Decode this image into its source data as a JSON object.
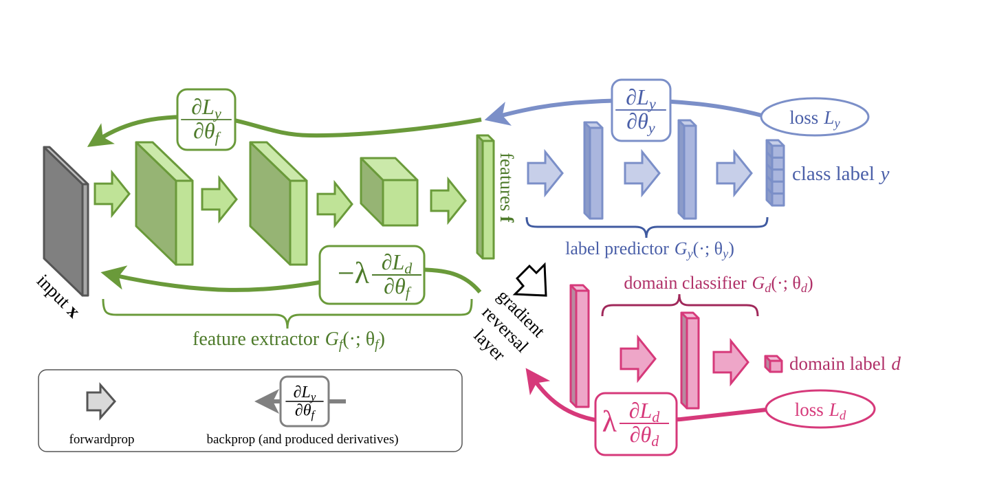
{
  "colors": {
    "green_stroke": "#6a9a3a",
    "green_fill": "#bfe397",
    "green_dark": "#96b474",
    "green_text": "#4d7a2a",
    "blue_stroke": "#7b8fc8",
    "blue_fill": "#c7cfe9",
    "blue_dark": "#8b9bc9",
    "blue_text": "#4a5fa8",
    "blue_brace": "#3f5aa0",
    "pink_stroke": "#d6397a",
    "pink_fill": "#eea6c8",
    "pink_text": "#b03068",
    "pink_brace": "#a0285a",
    "gray": "#808080"
  },
  "input": {
    "label": "input",
    "var": "x"
  },
  "features": {
    "label": "features",
    "var": "f"
  },
  "feature_extractor": {
    "label": "feature extractor",
    "fn": "G",
    "fn_sub": "f",
    "args": "(·; θ",
    "args_sub": "f",
    "close": ")"
  },
  "label_predictor": {
    "label": "label predictor",
    "fn": "G",
    "fn_sub": "y",
    "args": "(·; θ",
    "args_sub": "y",
    "close": ")"
  },
  "domain_classifier": {
    "label": "domain classifier",
    "fn": "G",
    "fn_sub": "d",
    "args": "(·; θ",
    "args_sub": "d",
    "close": ")"
  },
  "class_label": {
    "label": "class label",
    "var": "y"
  },
  "domain_label": {
    "label": "domain label",
    "var": "d"
  },
  "loss_y": {
    "label": "loss",
    "var": "L",
    "sub": "y"
  },
  "loss_d": {
    "label": "loss",
    "var": "L",
    "sub": "d"
  },
  "grl": {
    "lines": [
      "gradient",
      "reversal",
      "layer"
    ]
  },
  "derivatives": {
    "green_top": {
      "prefix": "",
      "num": "∂L",
      "num_sub": "y",
      "den": "∂θ",
      "den_sub": "f"
    },
    "blue_top": {
      "prefix": "",
      "num": "∂L",
      "num_sub": "y",
      "den": "∂θ",
      "den_sub": "y"
    },
    "green_bottom": {
      "prefix": "−λ",
      "num": "∂L",
      "num_sub": "d",
      "den": "∂θ",
      "den_sub": "f"
    },
    "pink_bottom": {
      "prefix": "λ",
      "num": "∂L",
      "num_sub": "d",
      "den": "∂θ",
      "den_sub": "d"
    },
    "legend": {
      "prefix": "",
      "num": "∂L",
      "num_sub": "y",
      "den": "∂θ",
      "den_sub": "f"
    }
  },
  "legend": {
    "forwardprop": "forwardprop",
    "backprop": "backprop (and produced derivatives)"
  }
}
